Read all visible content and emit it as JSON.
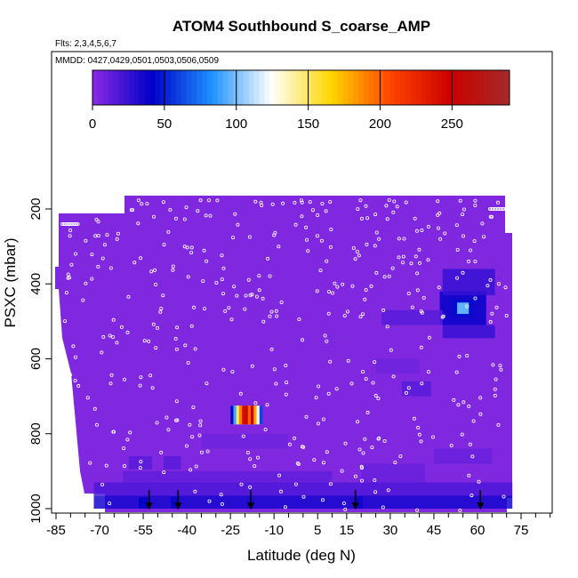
{
  "chart_data": {
    "type": "heatmap",
    "title": "ATOM4 Southbound S_coarse_AMP",
    "flights_label": "Flts: 2,3,4,5,6,7",
    "dates_label": "MMDD: 0427,0429,0501,0503,0506,0509",
    "xlabel": "Latitude (deg N)",
    "ylabel": "PSXC (mbar)",
    "xlim": [
      -87,
      80
    ],
    "ylim": [
      1000,
      140
    ],
    "x_ticks": [
      -85,
      -70,
      -55,
      -40,
      -25,
      -10,
      5,
      15,
      30,
      45,
      60,
      75
    ],
    "x_tick_labels": [
      "-85",
      "-70",
      "-55",
      "-40",
      "-25",
      "-10",
      "5",
      "15",
      "30",
      "45",
      "60",
      "75"
    ],
    "y_ticks": [
      200,
      400,
      600,
      800,
      1000
    ],
    "y_tick_labels": [
      "200",
      "400",
      "600",
      "800",
      "1000"
    ],
    "colorbar": {
      "min": 0,
      "max": 290,
      "ticks": [
        0,
        50,
        100,
        150,
        200,
        250
      ],
      "tick_labels": [
        "0",
        "50",
        "100",
        "150",
        "200",
        "250"
      ],
      "colors": [
        "#8a2be2",
        "#0000c8",
        "#1e90ff",
        "#ffffff",
        "#ffd700",
        "#ff4500",
        "#cc0000",
        "#a52a2a"
      ]
    },
    "background_value": 3,
    "cells": [
      {
        "lat": [
          -25,
          -14
        ],
        "p": [
          725,
          775
        ],
        "value": 150
      },
      {
        "lat": [
          51,
          59
        ],
        "p": [
          440,
          490
        ],
        "value": 60
      },
      {
        "lat": [
          47,
          63
        ],
        "p": [
          420,
          510
        ],
        "value": 40
      },
      {
        "lat": [
          53,
          57
        ],
        "p": [
          450,
          480
        ],
        "value": 85
      },
      {
        "lat": [
          48,
          66
        ],
        "p": [
          360,
          430
        ],
        "value": 25
      },
      {
        "lat": [
          48,
          66
        ],
        "p": [
          510,
          545
        ],
        "value": 25
      },
      {
        "lat": [
          27,
          48
        ],
        "p": [
          470,
          510
        ],
        "value": 15
      },
      {
        "lat": [
          34,
          44
        ],
        "p": [
          660,
          700
        ],
        "value": 15
      },
      {
        "lat": [
          -72,
          72
        ],
        "p": [
          965,
          1000
        ],
        "value": 35
      },
      {
        "lat": [
          -72,
          72
        ],
        "p": [
          930,
          965
        ],
        "value": 18
      },
      {
        "lat": [
          -62,
          10
        ],
        "p": [
          900,
          930
        ],
        "value": 12
      },
      {
        "lat": [
          -60,
          -52
        ],
        "p": [
          860,
          895
        ],
        "value": 15
      },
      {
        "lat": [
          -48,
          -42
        ],
        "p": [
          860,
          895
        ],
        "value": 15
      },
      {
        "lat": [
          20,
          42
        ],
        "p": [
          880,
          930
        ],
        "value": 10
      },
      {
        "lat": [
          45,
          65
        ],
        "p": [
          840,
          880
        ],
        "value": 10
      },
      {
        "lat": [
          -35,
          -5
        ],
        "p": [
          800,
          840
        ],
        "value": 8
      },
      {
        "lat": [
          25,
          40
        ],
        "p": [
          600,
          640
        ],
        "value": 8
      }
    ],
    "profiles": [
      {
        "lat": -55,
        "p": [
          970,
          1000
        ],
        "value": 40
      },
      {
        "lat": -44,
        "p": [
          968,
          1000
        ],
        "value": 38
      },
      {
        "lat": -18,
        "p": [
          965,
          1000
        ],
        "value": 32
      },
      {
        "lat": 19,
        "p": [
          966,
          1000
        ],
        "value": 36
      },
      {
        "lat": 61,
        "p": [
          970,
          1000
        ],
        "value": 30
      }
    ],
    "arrows_lat": [
      -53,
      -43,
      -18,
      18,
      61
    ],
    "arrow_pressure": 1003,
    "legend": "top"
  }
}
